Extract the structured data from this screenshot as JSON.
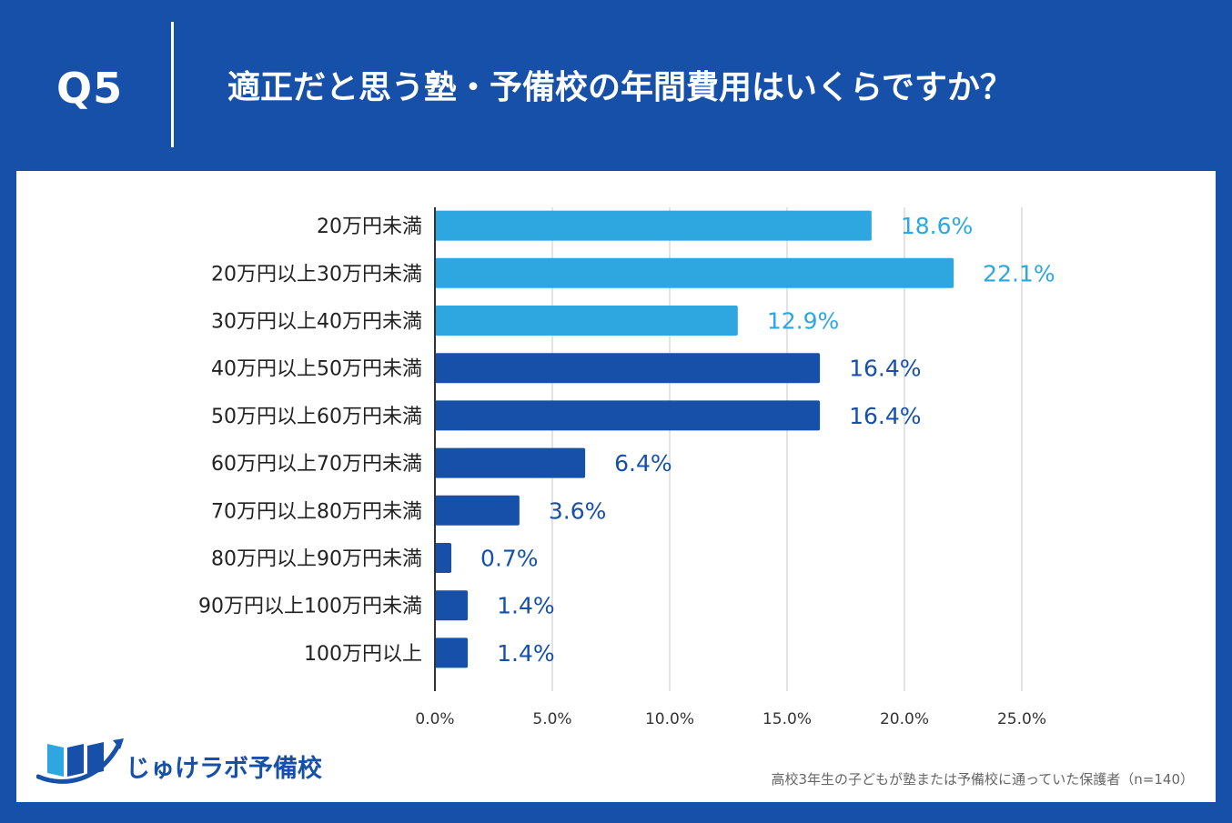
{
  "header": {
    "question_label": "Q5",
    "title": "適正だと思う塾・予備校の年間費用はいくらですか？"
  },
  "colors": {
    "header_bg": "#1650a8",
    "light_bar": "#2ea7e0",
    "dark_bar": "#1650a8",
    "gridline": "#d0d0d0",
    "axis": "#333333"
  },
  "chart_data": {
    "type": "bar",
    "orientation": "horizontal",
    "title": "適正だと思う塾・予備校の年間費用はいくらですか？",
    "categories": [
      "20万円未満",
      "20万円以上30万円未満",
      "30万円以上40万円未満",
      "40万円以上50万円未満",
      "50万円以上60万円未満",
      "60万円以上70万円未満",
      "70万円以上80万円未満",
      "80万円以上90万円未満",
      "90万円以上100万円未満",
      "100万円以上"
    ],
    "values": [
      18.6,
      22.1,
      12.9,
      16.4,
      16.4,
      6.4,
      3.6,
      0.7,
      1.4,
      1.4
    ],
    "value_labels": [
      "18.6%",
      "22.1%",
      "12.9%",
      "16.4%",
      "16.4%",
      "6.4%",
      "3.6%",
      "0.7%",
      "1.4%",
      "1.4%"
    ],
    "bar_colors": [
      "#2ea7e0",
      "#2ea7e0",
      "#2ea7e0",
      "#1650a8",
      "#1650a8",
      "#1650a8",
      "#1650a8",
      "#1650a8",
      "#1650a8",
      "#1650a8"
    ],
    "x_ticks": [
      0,
      5,
      10,
      15,
      20,
      25
    ],
    "x_tick_labels": [
      "0.0%",
      "5.0%",
      "10.0%",
      "15.0%",
      "20.0%",
      "25.0%"
    ],
    "xlim": [
      0,
      25
    ],
    "xlabel": "",
    "ylabel": "",
    "grid": true
  },
  "logo": {
    "text": "じゅけラボ予備校",
    "icon": "book-logo-icon"
  },
  "footnote": "高校3年生の子どもが塾または予備校に通っていた保護者（n=140）"
}
